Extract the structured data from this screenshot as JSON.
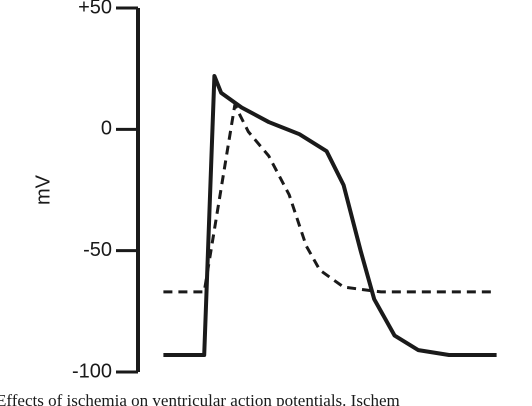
{
  "chart_data": {
    "type": "line",
    "y_label": "mV",
    "caption": "Effects of ischemia on ventricular action potentials. Ischem",
    "xlim": [
      0,
      100
    ],
    "ylim": [
      -100,
      50
    ],
    "yticks": [
      {
        "value": 50,
        "label": "+50"
      },
      0,
      -50,
      -100
    ],
    "series": [
      {
        "color": "#1a1a1a",
        "dash": false,
        "x": [
          1,
          13,
          16,
          18,
          24,
          32,
          41,
          49,
          54,
          59,
          63,
          69,
          76,
          85,
          99
        ],
        "values": [
          -93,
          -93,
          22,
          15,
          9,
          3,
          -2,
          -9,
          -23,
          -50,
          -70,
          -85,
          -91,
          -93,
          -93
        ]
      },
      {
        "color": "#1a1a1a",
        "dash": true,
        "x": [
          1,
          13,
          22,
          26,
          32,
          38,
          43,
          47,
          54,
          65,
          99
        ],
        "values": [
          -67,
          -67,
          10,
          -1,
          -11,
          -27,
          -48,
          -58,
          -65,
          -67,
          -67
        ]
      }
    ]
  }
}
